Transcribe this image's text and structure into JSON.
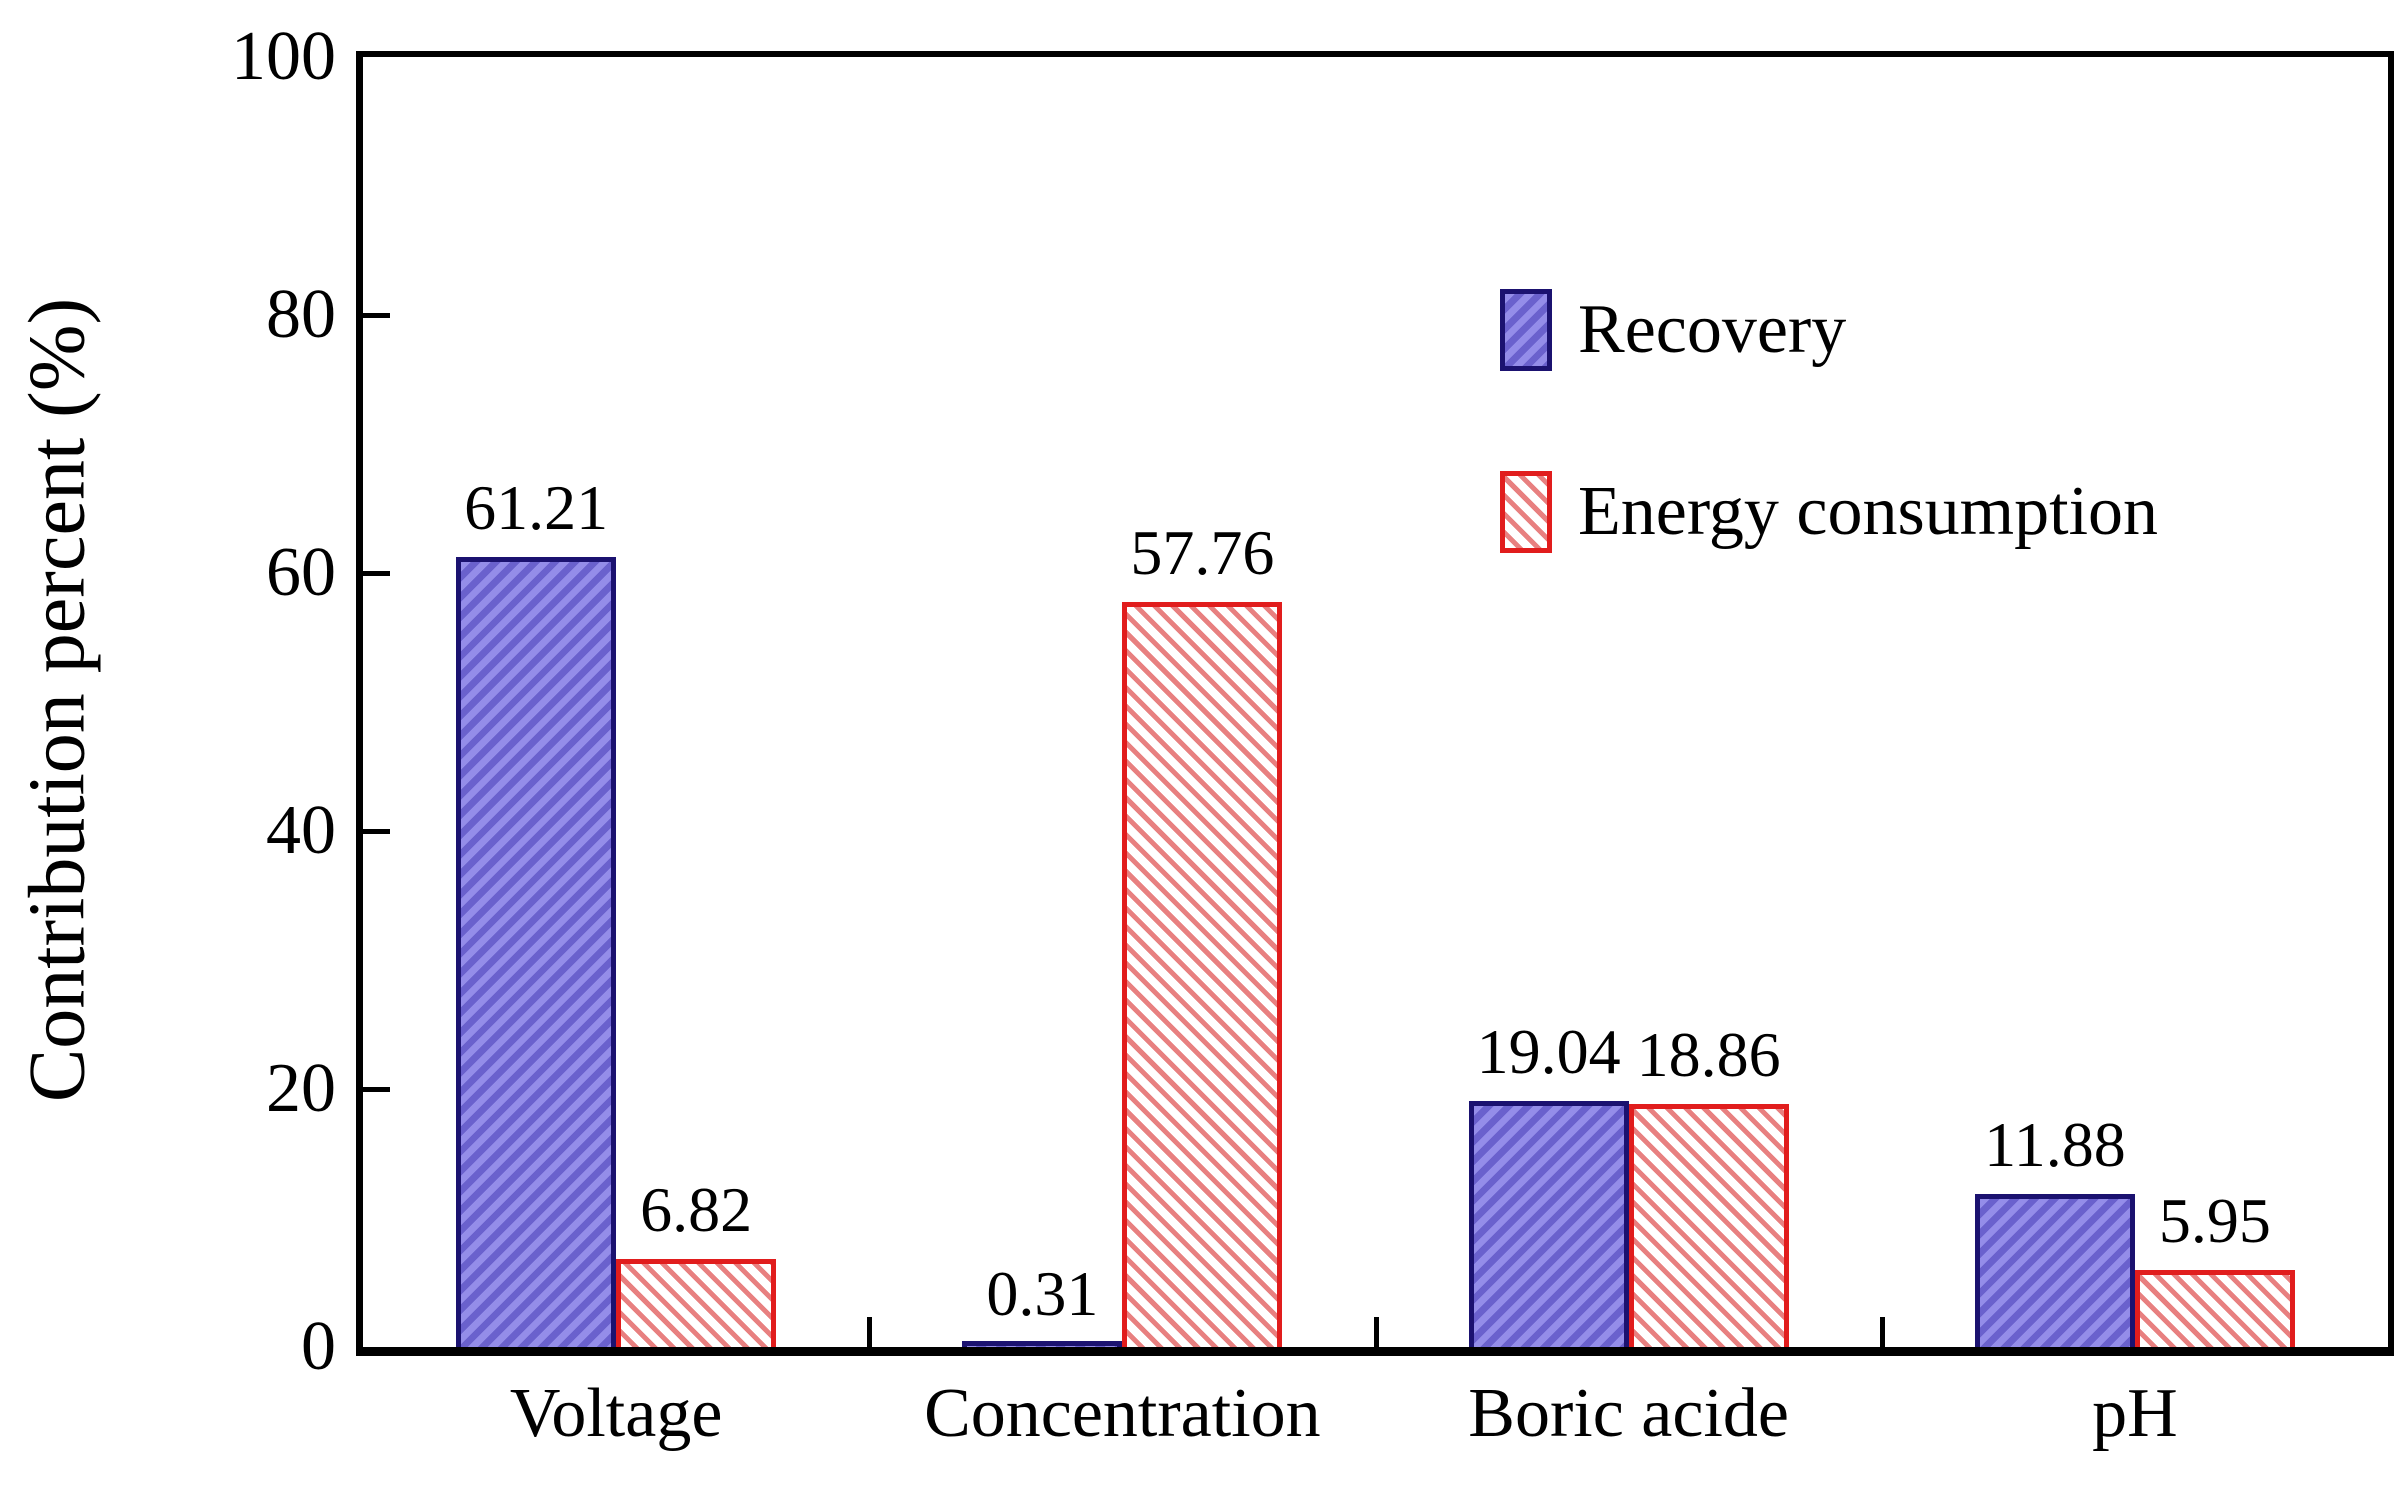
{
  "chart_data": {
    "type": "bar",
    "title": "",
    "categories": [
      "Voltage",
      "Concentration",
      "Boric acide",
      "pH"
    ],
    "series": [
      {
        "name": "Recovery",
        "values": [
          61.21,
          0.31,
          19.04,
          11.88
        ],
        "value_labels": [
          "61.21",
          "0.31",
          "19.04",
          "11.88"
        ],
        "hatch_direction": "/",
        "hatch_color_light": "#948de9",
        "hatch_color_dark": "#6a61cd",
        "border_color": "#1b1270"
      },
      {
        "name": "Energy consumption",
        "values": [
          6.82,
          57.76,
          18.86,
          5.95
        ],
        "value_labels": [
          "6.82",
          "57.76",
          "18.86",
          "5.95"
        ],
        "hatch_direction": "\\",
        "hatch_color_light": "#ffffff",
        "hatch_color_dark": "#e88080",
        "border_color": "#e11d1d"
      }
    ],
    "ylabel": "Contribution percent (%)",
    "ylim": [
      0,
      100
    ],
    "yticks": [
      0,
      20,
      40,
      60,
      80,
      100
    ],
    "axis_color": "#000000",
    "grid": false,
    "legend_position": "upper-right",
    "bar_value_labels": true
  }
}
